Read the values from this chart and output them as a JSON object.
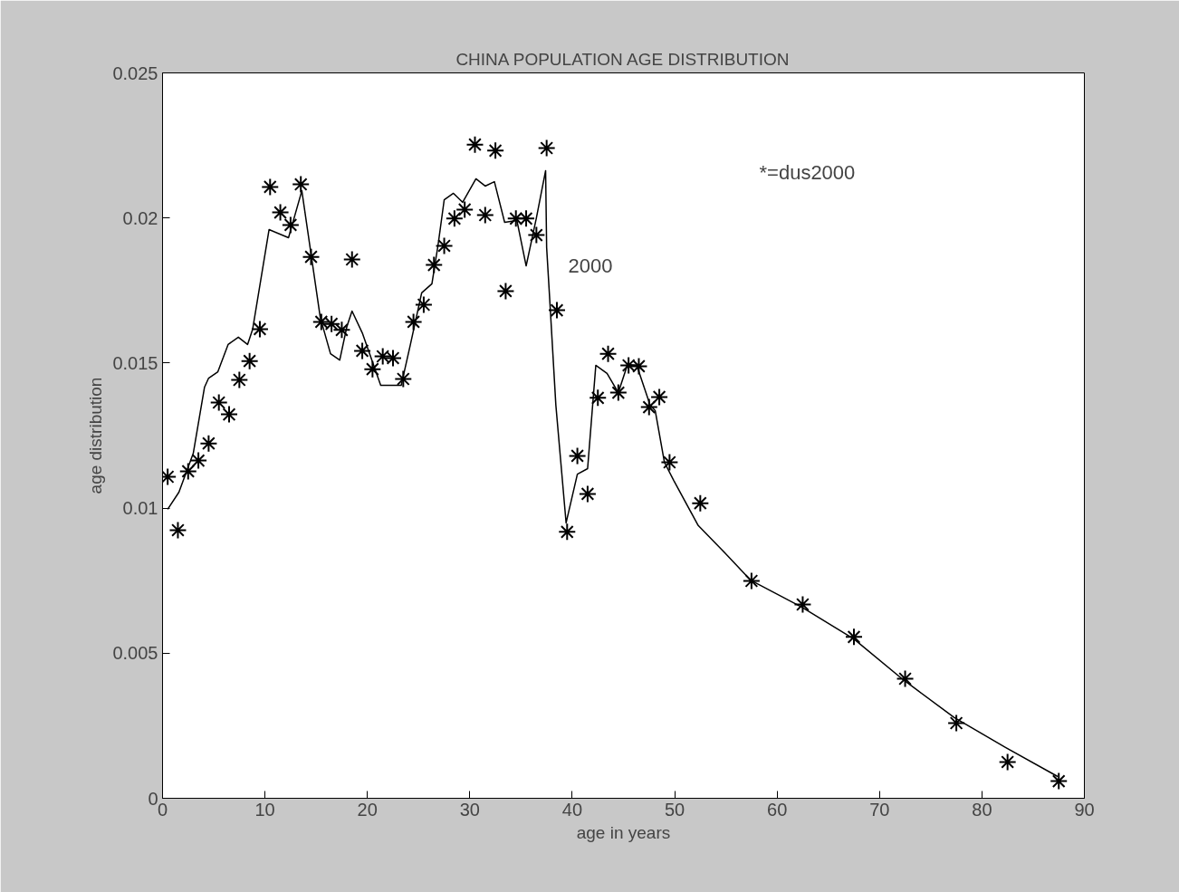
{
  "chart_data": {
    "type": "line",
    "title": "CHINA POPULATION AGE DISTRIBUTION",
    "xlabel": "age in years",
    "ylabel": "age distribution",
    "xlim": [
      0,
      90
    ],
    "xticks": [
      0,
      10,
      20,
      30,
      40,
      50,
      60,
      70,
      80,
      90
    ],
    "ylim": [
      0,
      0.025
    ],
    "yticks": [
      0,
      0.005,
      0.01,
      0.015,
      0.02,
      0.025
    ],
    "grid": false,
    "annotations": [
      "*=dus2000",
      "2000"
    ],
    "series": [
      {
        "color": "#000000",
        "line_style": "solid",
        "marker": "none",
        "x": [
          0.5,
          1.6,
          3,
          4.1,
          4.5,
          5.4,
          6.4,
          7.4,
          8.3,
          8.8,
          10.4,
          12.3,
          13.6,
          15.4,
          16.4,
          17.3,
          18,
          18.5,
          19.5,
          21.3,
          23.3,
          24.2,
          25.3,
          26.3,
          26.9,
          27.5,
          28.4,
          29.3,
          30.6,
          31.5,
          32.4,
          33.4,
          34.6,
          35.5,
          36.5,
          37.4,
          37.5,
          37.8,
          38.4,
          39.4,
          40.5,
          41.5,
          42.3,
          43.4,
          44.5,
          45.4,
          46.3,
          47.6,
          48.1,
          49,
          49.9,
          52.3,
          54.9,
          57.4,
          62.4,
          67.5,
          72.3,
          77.3,
          82.3,
          87.4
        ],
        "values": [
          0.00996,
          0.01055,
          0.01189,
          0.01417,
          0.01448,
          0.0147,
          0.01564,
          0.01589,
          0.01564,
          0.01617,
          0.0196,
          0.01932,
          0.02094,
          0.01657,
          0.01532,
          0.0151,
          0.01626,
          0.01679,
          0.01604,
          0.01423,
          0.01423,
          0.01564,
          0.01742,
          0.01773,
          0.01907,
          0.02063,
          0.02085,
          0.02054,
          0.02135,
          0.0211,
          0.02125,
          0.01985,
          0.01991,
          0.01835,
          0.02,
          0.02163,
          0.01898,
          0.0172,
          0.01355,
          0.00949,
          0.01117,
          0.01136,
          0.01492,
          0.01464,
          0.01398,
          0.01495,
          0.01492,
          0.01355,
          0.01336,
          0.01158,
          0.01096,
          0.0094,
          0.00846,
          0.00752,
          0.00659,
          0.00549,
          0.00409,
          0.00278,
          0.00175,
          0.00075
        ]
      },
      {
        "type": "scatter",
        "color": "#000000",
        "marker": "cross",
        "x": [
          0.5,
          1.5,
          2.5,
          3.5,
          4.5,
          5.5,
          6.5,
          7.5,
          8.5,
          9.5,
          10.5,
          11.5,
          12.5,
          13.5,
          14.5,
          15.5,
          16.5,
          17.5,
          18.5,
          19.5,
          20.5,
          21.5,
          22.5,
          23.5,
          24.5,
          25.5,
          26.5,
          27.5,
          28.5,
          29.5,
          30.5,
          31.5,
          32.5,
          33.5,
          34.5,
          35.5,
          36.5,
          37.5,
          38.5,
          39.5,
          40.5,
          41.5,
          42.5,
          43.5,
          44.5,
          45.5,
          46.5,
          47.5,
          48.5,
          49.5,
          52.5,
          57.5,
          62.5,
          67.5,
          72.5,
          77.5,
          82.5,
          87.5
        ],
        "values": [
          0.01108,
          0.00924,
          0.01127,
          0.01164,
          0.01223,
          0.01364,
          0.01323,
          0.01442,
          0.01507,
          0.01617,
          0.02107,
          0.02019,
          0.01976,
          0.02116,
          0.01866,
          0.01642,
          0.01635,
          0.01614,
          0.01857,
          0.01542,
          0.01479,
          0.01523,
          0.01517,
          0.01445,
          0.01642,
          0.01701,
          0.01838,
          0.01904,
          0.01998,
          0.02029,
          0.02253,
          0.0201,
          0.02232,
          0.01748,
          0.01998,
          0.01998,
          0.01941,
          0.02241,
          0.01682,
          0.00918,
          0.0118,
          0.01049,
          0.0138,
          0.01532,
          0.01398,
          0.01492,
          0.01489,
          0.01348,
          0.01383,
          0.01158,
          0.01017,
          0.00749,
          0.00668,
          0.00556,
          0.00412,
          0.00259,
          0.00125,
          0.00059
        ]
      }
    ]
  }
}
